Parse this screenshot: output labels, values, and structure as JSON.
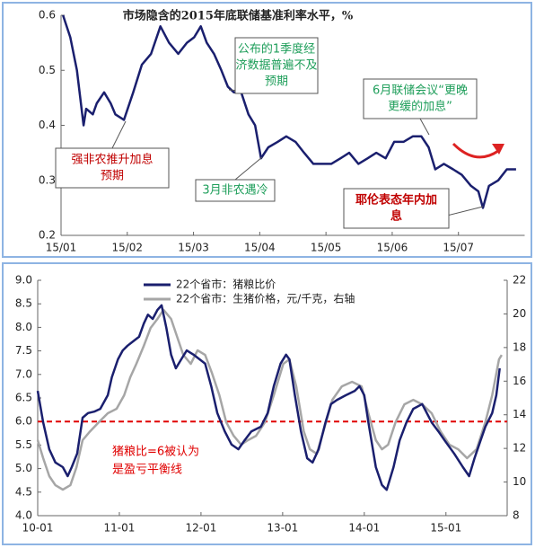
{
  "chart_data": [
    {
      "type": "line",
      "title": "市场隐含的2015年底联储基准利率水平，%",
      "xlim": [
        0,
        7
      ],
      "xticks": [
        {
          "value": 0,
          "label": "15/01"
        },
        {
          "value": 1,
          "label": "15/02"
        },
        {
          "value": 2,
          "label": "15/03"
        },
        {
          "value": 3,
          "label": "15/04"
        },
        {
          "value": 4,
          "label": "15/05"
        },
        {
          "value": 5,
          "label": "15/06"
        },
        {
          "value": 6,
          "label": "15/07"
        }
      ],
      "ylim": [
        0.2,
        0.6
      ],
      "yticks": [
        0.2,
        0.3,
        0.4,
        0.5,
        0.6
      ],
      "series": [
        {
          "name": null,
          "color": "#1a1f6e",
          "x": [
            0.03,
            0.14,
            0.24,
            0.34,
            0.38,
            0.48,
            0.54,
            0.65,
            0.75,
            0.82,
            0.95,
            1.09,
            1.22,
            1.36,
            1.5,
            1.63,
            1.77,
            1.9,
            2.01,
            2.11,
            2.2,
            2.31,
            2.42,
            2.52,
            2.61,
            2.72,
            2.83,
            2.93,
            3.02,
            3.13,
            3.27,
            3.4,
            3.54,
            3.67,
            3.81,
            3.95,
            4.08,
            4.22,
            4.35,
            4.49,
            4.63,
            4.76,
            4.9,
            5.03,
            5.17,
            5.31,
            5.44,
            5.55,
            5.65,
            5.78,
            5.92,
            6.05,
            6.19,
            6.3,
            6.37,
            6.46,
            6.6,
            6.73,
            6.87
          ],
          "values": [
            0.6,
            0.56,
            0.5,
            0.4,
            0.43,
            0.42,
            0.44,
            0.46,
            0.44,
            0.42,
            0.41,
            0.46,
            0.51,
            0.53,
            0.58,
            0.55,
            0.53,
            0.55,
            0.56,
            0.58,
            0.55,
            0.53,
            0.5,
            0.47,
            0.46,
            0.46,
            0.42,
            0.4,
            0.34,
            0.36,
            0.37,
            0.38,
            0.37,
            0.35,
            0.33,
            0.33,
            0.33,
            0.34,
            0.35,
            0.33,
            0.34,
            0.35,
            0.34,
            0.37,
            0.37,
            0.38,
            0.38,
            0.36,
            0.32,
            0.33,
            0.32,
            0.31,
            0.29,
            0.28,
            0.25,
            0.29,
            0.3,
            0.32,
            0.32
          ]
        }
      ],
      "annotations": [
        {
          "lines": [
            "强非农推升加息",
            "预期"
          ],
          "color": "#c00000"
        },
        {
          "lines": [
            "3月非农遇冷"
          ],
          "color": "#1e9e5a"
        },
        {
          "lines": [
            "公布的1季度经",
            "济数据普遍不及",
            "预期"
          ],
          "color": "#1e9e5a"
        },
        {
          "lines": [
            "6月联储会议“更晚",
            "更缓的加息”"
          ],
          "color": "#1e9e5a"
        },
        {
          "lines": [
            "耶伦表态年内加",
            "息"
          ],
          "color": "#c00000"
        }
      ]
    },
    {
      "type": "line",
      "xlim": [
        0,
        69
      ],
      "xticks": [
        {
          "value": 0,
          "label": "10-01"
        },
        {
          "value": 12,
          "label": "11-01"
        },
        {
          "value": 24,
          "label": "12-01"
        },
        {
          "value": 36,
          "label": "13-01"
        },
        {
          "value": 48,
          "label": "14-01"
        },
        {
          "value": 60,
          "label": "15-01"
        }
      ],
      "ylim": [
        4,
        9
      ],
      "yticks": [
        {
          "value": 4,
          "label": "4.0"
        },
        4.5,
        {
          "value": 5,
          "label": "5.0"
        },
        5.5,
        {
          "value": 6,
          "label": "6.0"
        },
        6.5,
        {
          "value": 7,
          "label": "7.0"
        },
        7.5,
        {
          "value": 8,
          "label": "8.0"
        },
        8.5,
        {
          "value": 9,
          "label": "9.0"
        }
      ],
      "y2lim": [
        8,
        22
      ],
      "y2ticks": [
        8,
        10,
        12,
        14,
        16,
        18,
        20,
        22
      ],
      "series": [
        {
          "name": "22个省市：猪粮比价",
          "color": "#1a1f6e",
          "x": [
            0,
            0.8,
            1.7,
            2.6,
            3.7,
            4.4,
            5.0,
            5.8,
            6.6,
            7.4,
            8.3,
            9.2,
            10.3,
            10.9,
            11.8,
            12.5,
            13.2,
            14.0,
            14.9,
            15.6,
            16.2,
            16.9,
            17.6,
            18.2,
            18.9,
            19.6,
            20.3,
            21.1,
            21.9,
            22.9,
            23.8,
            24.6,
            25.5,
            26.4,
            27.5,
            28.5,
            29.5,
            30.4,
            31.4,
            32.8,
            33.8,
            34.7,
            35.7,
            36.5,
            37.0,
            37.8,
            38.7,
            39.6,
            40.4,
            41.3,
            42.3,
            43.1,
            44.0,
            45.3,
            46.6,
            47.3,
            48.0,
            48.6,
            49.7,
            50.6,
            51.3,
            52.3,
            53.2,
            54.2,
            55.2,
            56.5,
            57.9,
            58.9,
            59.8,
            61.2,
            62.5,
            63.4,
            64.2,
            65.1,
            65.8,
            66.8,
            67.4,
            67.9
          ],
          "values": [
            6.65,
            5.98,
            5.41,
            5.13,
            5.03,
            4.84,
            5.03,
            5.32,
            6.08,
            6.18,
            6.21,
            6.27,
            6.56,
            6.94,
            7.32,
            7.51,
            7.61,
            7.7,
            7.8,
            8.08,
            8.27,
            8.18,
            8.37,
            8.47,
            7.99,
            7.42,
            7.13,
            7.32,
            7.51,
            7.42,
            7.32,
            7.23,
            6.75,
            6.18,
            5.79,
            5.51,
            5.41,
            5.6,
            5.79,
            5.89,
            6.18,
            6.75,
            7.23,
            7.42,
            7.32,
            6.56,
            5.79,
            5.22,
            5.13,
            5.41,
            5.98,
            6.37,
            6.46,
            6.56,
            6.65,
            6.75,
            6.56,
            5.98,
            5.03,
            4.65,
            4.55,
            5.03,
            5.6,
            5.98,
            6.27,
            6.37,
            5.98,
            5.79,
            5.6,
            5.32,
            5.03,
            4.84,
            5.22,
            5.6,
            5.89,
            6.18,
            6.56,
            7.13
          ]
        },
        {
          "name": "22个省市：生猪价格，元/千克，右轴",
          "color": "#a6a6a6",
          "axis": "y2",
          "x": [
            0,
            0.8,
            1.7,
            2.6,
            3.7,
            4.8,
            5.7,
            6.6,
            7.7,
            9.0,
            10.3,
            11.6,
            12.7,
            13.6,
            14.5,
            15.6,
            16.6,
            17.6,
            18.5,
            19.6,
            20.5,
            21.4,
            22.5,
            23.5,
            24.6,
            25.6,
            26.7,
            27.7,
            28.8,
            29.9,
            30.9,
            32.1,
            33.4,
            34.7,
            36.1,
            37.0,
            38.0,
            39.1,
            40.0,
            41.0,
            42.0,
            43.3,
            44.7,
            46.2,
            47.6,
            48.6,
            49.7,
            50.6,
            51.5,
            52.6,
            53.9,
            55.2,
            56.5,
            57.9,
            59.2,
            60.5,
            61.8,
            63.1,
            64.5,
            65.8,
            66.8,
            67.8,
            68.2
          ],
          "values": [
            12.49,
            11.42,
            10.35,
            9.81,
            9.55,
            9.81,
            10.88,
            12.49,
            13.02,
            13.56,
            14.09,
            14.36,
            15.16,
            16.23,
            17.03,
            18.1,
            19.17,
            19.7,
            20.24,
            19.7,
            18.63,
            17.56,
            17.03,
            17.83,
            17.56,
            16.5,
            15.16,
            13.56,
            12.75,
            12.22,
            12.49,
            12.75,
            13.56,
            15.16,
            17.03,
            17.3,
            15.69,
            13.02,
            11.95,
            11.68,
            13.02,
            14.89,
            15.69,
            15.96,
            15.69,
            14.09,
            12.49,
            11.95,
            12.22,
            13.56,
            14.62,
            14.89,
            14.62,
            14.09,
            13.02,
            12.22,
            11.95,
            11.42,
            11.95,
            13.56,
            15.16,
            17.3,
            17.56
          ]
        }
      ],
      "reference_line": {
        "value": 6,
        "color": "#e00000"
      },
      "annotations": [
        {
          "lines": [
            "猪粮比=6被认为",
            "是盈亏平衡线"
          ],
          "color": "#e00000"
        }
      ]
    }
  ]
}
